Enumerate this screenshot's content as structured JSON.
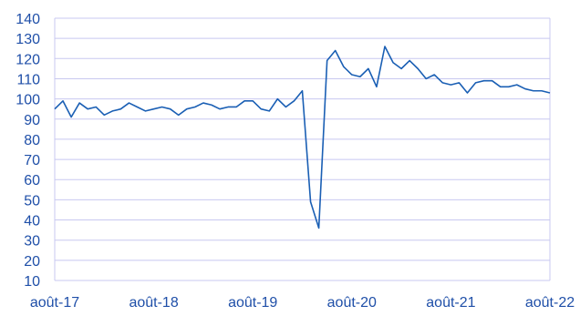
{
  "chart_data": {
    "type": "line",
    "title": "",
    "xlabel": "",
    "ylabel": "",
    "ylim": [
      10,
      140
    ],
    "yticks": [
      10,
      20,
      30,
      40,
      50,
      60,
      70,
      80,
      90,
      100,
      110,
      120,
      130,
      140
    ],
    "xtick_labels": [
      "août-17",
      "août-18",
      "août-19",
      "août-20",
      "août-21",
      "août-22"
    ],
    "grid": true,
    "colors": {
      "line": "#1a5fb4",
      "grid": "#c8c8f0",
      "text": "#1f4fa8"
    },
    "series": [
      {
        "values": [
          95,
          99,
          91,
          98,
          95,
          96,
          92,
          94,
          95,
          98,
          96,
          94,
          95,
          96,
          95,
          92,
          95,
          96,
          98,
          97,
          95,
          96,
          96,
          99,
          99,
          95,
          94,
          100,
          96,
          99,
          104,
          49,
          36,
          119,
          124,
          116,
          112,
          111,
          115,
          106,
          126,
          118,
          115,
          119,
          115,
          110,
          112,
          108,
          107,
          108,
          103,
          108,
          109,
          109,
          106,
          106,
          107,
          105,
          104,
          104,
          103
        ]
      }
    ]
  }
}
